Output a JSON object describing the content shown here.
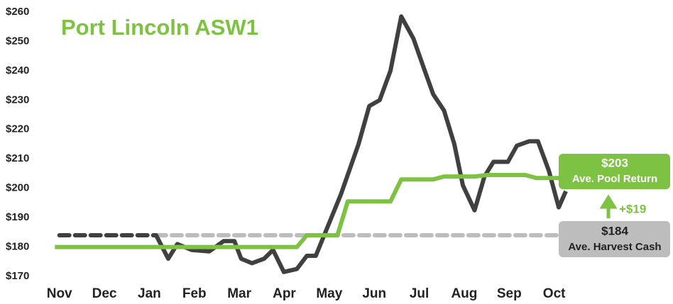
{
  "chart_data": {
    "type": "line",
    "title": "Port Lincoln ASW1",
    "xlim": [
      -0.2,
      11.4
    ],
    "xticks": [
      {
        "value": 0,
        "label": "Nov"
      },
      {
        "value": 1,
        "label": "Dec"
      },
      {
        "value": 2,
        "label": "Jan"
      },
      {
        "value": 3,
        "label": "Feb"
      },
      {
        "value": 4,
        "label": "Mar"
      },
      {
        "value": 5,
        "label": "Apr"
      },
      {
        "value": 6,
        "label": "May"
      },
      {
        "value": 7,
        "label": "Jun"
      },
      {
        "value": 8,
        "label": "Jul"
      },
      {
        "value": 9,
        "label": "Aug"
      },
      {
        "value": 10,
        "label": "Sep"
      },
      {
        "value": 11,
        "label": "Oct"
      }
    ],
    "ylim": [
      170,
      260
    ],
    "yticks": [
      {
        "value": 170,
        "label": "$170"
      },
      {
        "value": 180,
        "label": "$180"
      },
      {
        "value": 190,
        "label": "$190"
      },
      {
        "value": 200,
        "label": "$200"
      },
      {
        "value": 210,
        "label": "$210"
      },
      {
        "value": 220,
        "label": "$220"
      },
      {
        "value": 230,
        "label": "$230"
      },
      {
        "value": 240,
        "label": "$240"
      },
      {
        "value": 250,
        "label": "$250"
      },
      {
        "value": 260,
        "label": "$260"
      }
    ],
    "grid": false,
    "series": [
      {
        "color": "#bdbdbd",
        "dashed": true,
        "x": [
          2.15,
          11.15
        ],
        "values": [
          184,
          184
        ]
      },
      {
        "color": "#404040",
        "dashed": true,
        "x": [
          0,
          2.15
        ],
        "values": [
          184,
          184
        ]
      },
      {
        "color": "#404040",
        "dashed": false,
        "x": [
          2.15,
          2.42,
          2.62,
          2.94,
          3.33,
          3.65,
          3.89,
          4.04,
          4.28,
          4.55,
          4.75,
          4.99,
          5.28,
          5.5,
          5.7,
          5.94,
          6.26,
          6.65,
          6.89,
          7.12,
          7.36,
          7.6,
          7.87,
          8.1,
          8.31,
          8.55,
          8.78,
          8.97,
          9.23,
          9.45,
          9.65,
          9.97,
          10.17,
          10.44,
          10.64,
          10.88,
          11.1,
          11.26
        ],
        "values": [
          184,
          176,
          181,
          179,
          178.5,
          182,
          182,
          176,
          174.5,
          176,
          179,
          171.5,
          172.5,
          177,
          177,
          186,
          198,
          215,
          228,
          230,
          240,
          258.5,
          251,
          241,
          232,
          226.5,
          215,
          201,
          192.5,
          204,
          209,
          209,
          214.5,
          216,
          216,
          206,
          193.5,
          199
        ]
      },
      {
        "color": "#7dc242",
        "dashed": false,
        "x": [
          -0.1,
          5.28,
          5.5,
          6.18,
          6.41,
          7.36,
          7.6,
          8.31,
          8.55,
          9.23,
          9.5,
          10.36,
          10.6,
          11.15
        ],
        "values": [
          180,
          180,
          184,
          184,
          195.5,
          195.5,
          203,
          203,
          204,
          204,
          204.5,
          204.5,
          203.5,
          203.5
        ]
      }
    ],
    "annotations": {
      "pool_value": "$203",
      "pool_label": "Ave. Pool Return",
      "cash_value": "$184",
      "cash_label": "Ave. Harvest Cash",
      "difference": "+$19"
    }
  }
}
